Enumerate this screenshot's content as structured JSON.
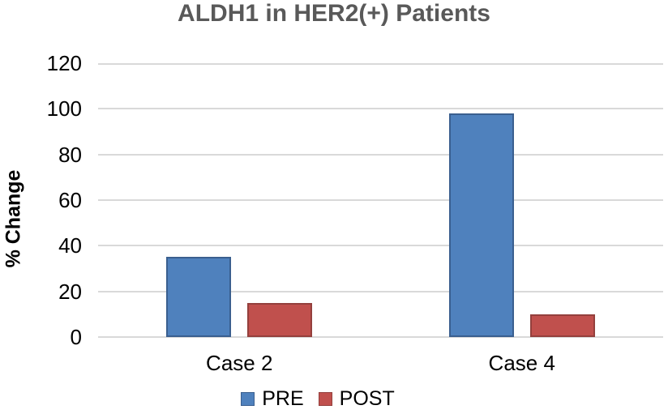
{
  "chart_data": {
    "type": "bar",
    "title": "ALDH1 in HER2(+) Patients",
    "ylabel": "% Change",
    "xlabel": "",
    "categories": [
      "Case 2",
      "Case 4"
    ],
    "series": [
      {
        "name": "PRE",
        "values": [
          35,
          98
        ],
        "color": "#4F81BD",
        "border": "#3A5F8F"
      },
      {
        "name": "POST",
        "values": [
          15,
          10
        ],
        "color": "#C0504D",
        "border": "#94403D"
      }
    ],
    "ylim": [
      0,
      120
    ],
    "ytick_step": 20,
    "yticks": [
      0,
      20,
      40,
      60,
      80,
      100,
      120
    ],
    "grid": "horizontal",
    "legend_position": "bottom",
    "gridline_color": "#D9D9D9",
    "title_color": "#595959",
    "text_color": "#000000"
  }
}
